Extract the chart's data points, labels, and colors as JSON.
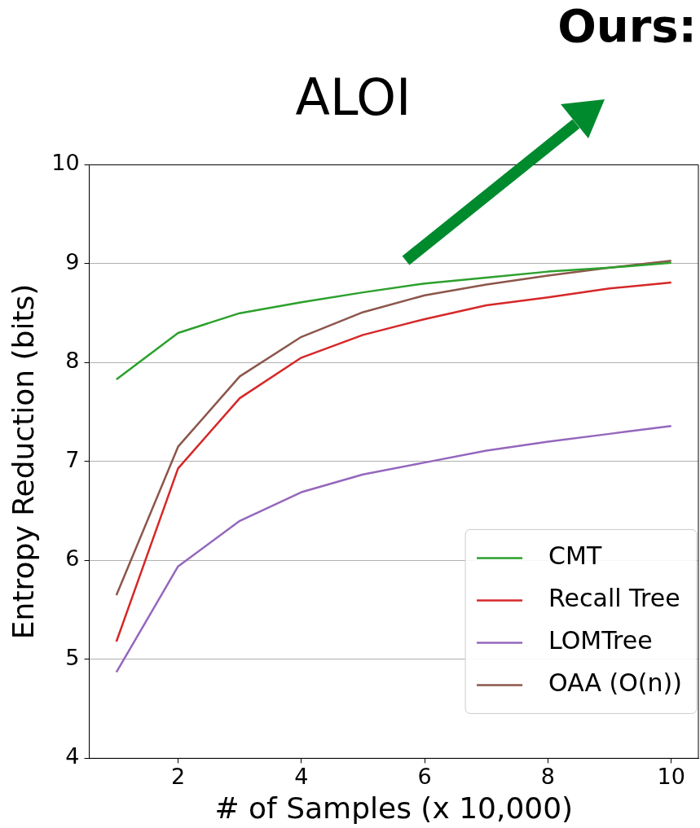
{
  "chart_data": {
    "type": "line",
    "title": "ALOI",
    "xlabel": "# of Samples (x 10,000)",
    "ylabel": "Entropy Reduction (bits)",
    "annotations": [
      "Ours:"
    ],
    "x": [
      1,
      2,
      3,
      4,
      5,
      6,
      7,
      8,
      9,
      10
    ],
    "series": [
      {
        "name": "CMT",
        "color": "#2ca02c",
        "values": [
          7.83,
          8.3,
          8.5,
          8.61,
          8.71,
          8.8,
          8.86,
          8.92,
          8.96,
          9.01
        ]
      },
      {
        "name": "Recall Tree",
        "color": "#d62728",
        "values": [
          5.18,
          6.93,
          7.64,
          8.05,
          8.28,
          8.44,
          8.58,
          8.66,
          8.75,
          8.81
        ]
      },
      {
        "name": "LOMTree",
        "color": "#9467bd",
        "values": [
          4.87,
          5.94,
          6.4,
          6.69,
          6.87,
          6.99,
          7.11,
          7.2,
          7.28,
          7.36
        ]
      },
      {
        "name": "OAA (O(n))",
        "color": "#8c564b",
        "values": [
          5.65,
          7.15,
          7.86,
          8.26,
          8.51,
          8.68,
          8.79,
          8.88,
          8.96,
          9.03
        ]
      }
    ],
    "xlim": [
      0.56,
      10.44
    ],
    "xticks": [
      2,
      4,
      6,
      8,
      10
    ],
    "ylim": [
      4,
      10
    ],
    "yticks": [
      4,
      5,
      6,
      7,
      8,
      9,
      10
    ],
    "grid": "y",
    "legend": "bottom right",
    "marker": "none",
    "line_style": "solid"
  }
}
